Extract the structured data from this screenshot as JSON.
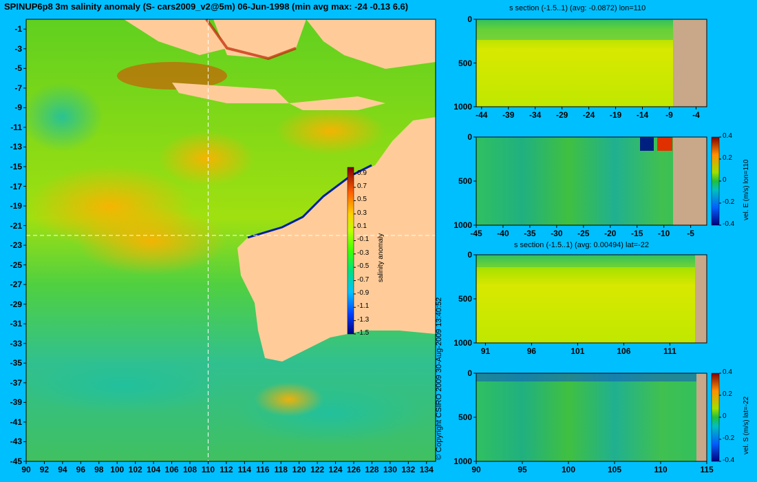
{
  "colors": {
    "background": "#00bfff",
    "land": "#ffcc99",
    "section_land": "#c8a888"
  },
  "title": "SPINUP6p8 3m salinity anomaly (S- cars2009_v2@5m) 06-Jun-1998 (min avg max: -24 -0.13 6.6)",
  "copyright": "© Copyright CSIRO 2009  30-Aug-2009 13:40:52",
  "chart_data": [
    {
      "id": "map",
      "type": "heatmap",
      "title": "SPINUP6p8 3m salinity anomaly (S- cars2009_v2@5m) 06-Jun-1998 (min avg max: -24 -0.13 6.6)",
      "x_ticks": [
        "90",
        "92",
        "94",
        "96",
        "98",
        "100",
        "102",
        "104",
        "106",
        "108",
        "110",
        "112",
        "114",
        "116",
        "118",
        "120",
        "122",
        "124",
        "126",
        "128",
        "130",
        "132",
        "134"
      ],
      "y_ticks": [
        "-1",
        "-3",
        "-5",
        "-7",
        "-9",
        "-11",
        "-13",
        "-15",
        "-17",
        "-19",
        "-21",
        "-23",
        "-25",
        "-27",
        "-29",
        "-31",
        "-33",
        "-35",
        "-37",
        "-39",
        "-41",
        "-43",
        "-45"
      ],
      "xlim": [
        90,
        135
      ],
      "ylim": [
        -45,
        0
      ],
      "crosshair": {
        "lon": 110,
        "lat": -22
      },
      "colorbar": {
        "label": "salinity anomaly",
        "range": [
          -1.5,
          1.0
        ],
        "ticks": [
          "0.9",
          "0.7",
          "0.5",
          "0.3",
          "0.1",
          "-0.1",
          "-0.3",
          "-0.5",
          "-0.7",
          "-0.9",
          "-1.1",
          "-1.3",
          "-1.5"
        ]
      }
    },
    {
      "id": "sec1",
      "type": "heatmap",
      "title": "s section (-1.5..1) (avg: -0.0872) lon=110",
      "x_ticks": [
        "-44",
        "-39",
        "-34",
        "-29",
        "-24",
        "-19",
        "-14",
        "-9",
        "-4"
      ],
      "y_ticks": [
        "0",
        "500",
        "1000"
      ],
      "xlim": [
        -45,
        -2
      ],
      "ylim": [
        1000,
        0
      ]
    },
    {
      "id": "sec2",
      "type": "heatmap",
      "title": "",
      "x_ticks": [
        "-45",
        "-40",
        "-35",
        "-30",
        "-25",
        "-20",
        "-15",
        "-10",
        "-5"
      ],
      "y_ticks": [
        "0",
        "500",
        "1000"
      ],
      "xlim": [
        -45,
        -2
      ],
      "ylim": [
        1000,
        0
      ],
      "colorbar": {
        "label": "vel. E (m/s) lon=110",
        "range": [
          -0.4,
          0.4
        ],
        "ticks": [
          "0.4",
          "0.2",
          "0",
          "-0.2",
          "-0.4"
        ]
      }
    },
    {
      "id": "sec3",
      "type": "heatmap",
      "title": "s section (-1.5..1) (avg: 0.00494) lat=-22",
      "x_ticks": [
        "91",
        "96",
        "101",
        "106",
        "111"
      ],
      "y_ticks": [
        "0",
        "500",
        "1000"
      ],
      "xlim": [
        90,
        115
      ],
      "ylim": [
        1000,
        0
      ]
    },
    {
      "id": "sec4",
      "type": "heatmap",
      "title": "",
      "x_ticks": [
        "90",
        "95",
        "100",
        "105",
        "110",
        "115"
      ],
      "y_ticks": [
        "0",
        "500",
        "1000"
      ],
      "xlim": [
        90,
        115
      ],
      "ylim": [
        1000,
        0
      ],
      "colorbar": {
        "label": "vel. S (m/s) lat=-22",
        "range": [
          -0.4,
          0.4
        ],
        "ticks": [
          "0.4",
          "0.2",
          "0",
          "-0.2",
          "-0.4"
        ]
      }
    }
  ]
}
